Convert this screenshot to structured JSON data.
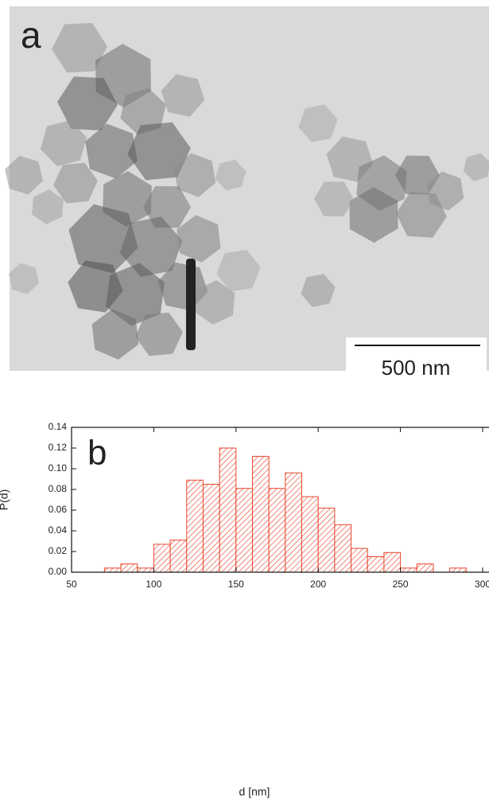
{
  "image_panel": {
    "label": "a",
    "scale_bar": "500 nm"
  },
  "chart_data": {
    "type": "histogram",
    "panel_label": "b",
    "x_label": "d [nm]",
    "y_label": "P(d)",
    "bins": [
      70,
      80,
      90,
      100,
      110,
      120,
      130,
      140,
      150,
      160,
      170,
      180,
      190,
      200,
      210,
      220,
      230,
      240,
      250,
      260,
      270,
      280,
      290
    ],
    "values": [
      0.004,
      0.008,
      0.004,
      0.027,
      0.031,
      0.089,
      0.085,
      0.12,
      0.081,
      0.112,
      0.081,
      0.096,
      0.073,
      0.062,
      0.046,
      0.023,
      0.015,
      0.019,
      0.004,
      0.008,
      0,
      0.004
    ],
    "color": "#e8472e",
    "xlim": [
      50,
      300
    ],
    "xticks": [
      50,
      100,
      150,
      200,
      250,
      300
    ],
    "ylim": [
      0,
      0.14
    ],
    "yticks": [
      {
        "value": 0,
        "label": "0.00"
      },
      0.02,
      0.04,
      0.06,
      0.08,
      {
        "value": 0.1,
        "label": "0.10"
      },
      0.12,
      0.14
    ]
  }
}
